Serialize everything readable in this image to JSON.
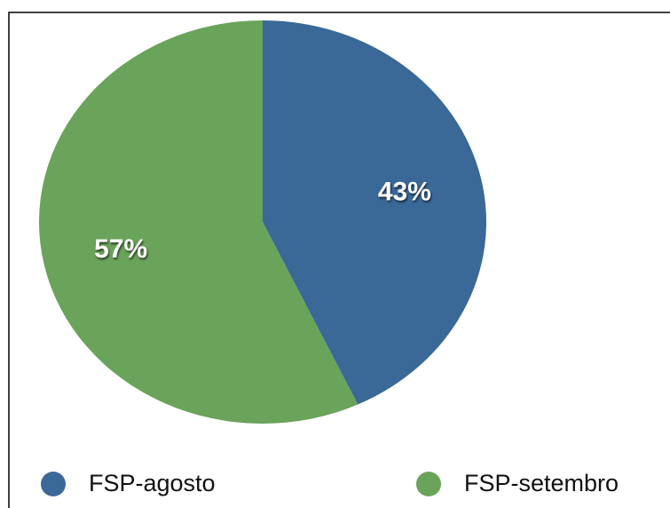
{
  "chart_data": {
    "type": "pie",
    "categories": [
      "FSP-agosto",
      "FSP-setembro"
    ],
    "values": [
      43,
      57
    ],
    "value_labels": [
      "43%",
      "57%"
    ],
    "colors": [
      "#3a6897",
      "#6aa35a"
    ],
    "legend": "bottom"
  }
}
